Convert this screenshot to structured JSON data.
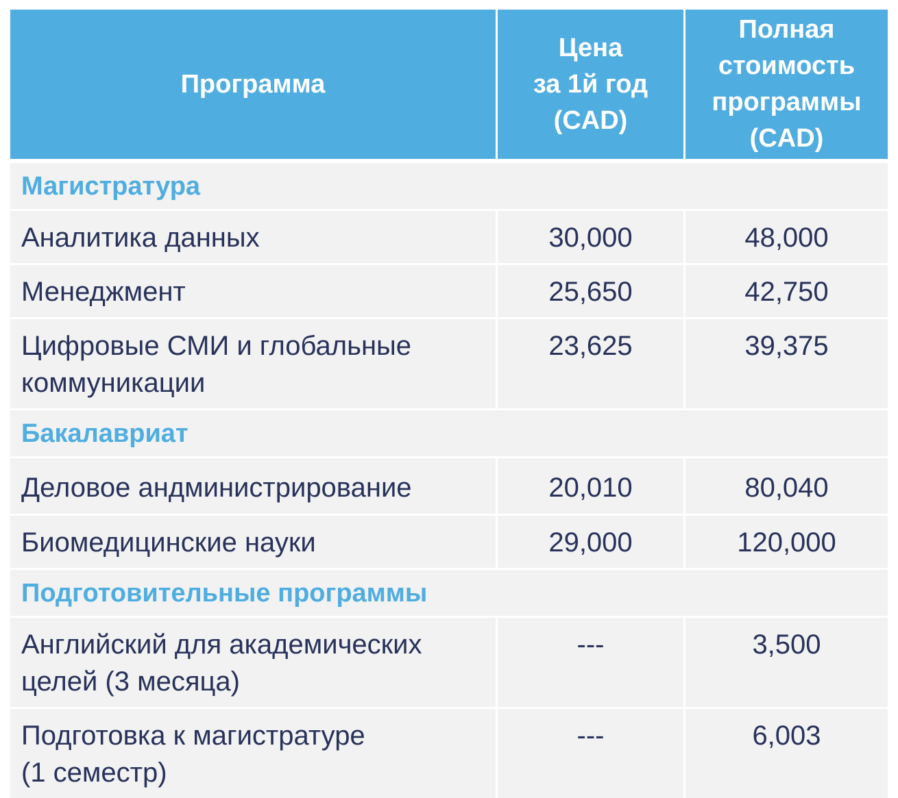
{
  "header": {
    "program": "Программа",
    "first_year": [
      "Цена",
      "за 1й год",
      "(CAD)"
    ],
    "total": [
      "Полная",
      "стоимость",
      "программы",
      "(CAD)"
    ]
  },
  "sections": [
    {
      "title": "Магистратура",
      "rows": [
        {
          "name": [
            "Аналитика данных"
          ],
          "first_year": "30,000",
          "total": "48,000"
        },
        {
          "name": [
            "Менеджмент"
          ],
          "first_year": "25,650",
          "total": "42,750"
        },
        {
          "name": [
            "Цифровые СМИ и глобальные",
            "коммуникации"
          ],
          "first_year": "23,625",
          "total": "39,375"
        }
      ]
    },
    {
      "title": "Бакалавриат",
      "rows": [
        {
          "name": [
            "Деловое андминистрирование"
          ],
          "first_year": "20,010",
          "total": "80,040"
        },
        {
          "name": [
            "Биомедицинские науки"
          ],
          "first_year": "29,000",
          "total": "120,000"
        }
      ]
    },
    {
      "title": "Подготовительные программы",
      "rows": [
        {
          "name": [
            "Английский для академических",
            "целей (3 месяца)"
          ],
          "first_year": "---",
          "total": "3,500"
        },
        {
          "name": [
            "Подготовка к магистратуре",
            "(1 семестр)"
          ],
          "first_year": "---",
          "total": "6,003"
        }
      ]
    }
  ]
}
